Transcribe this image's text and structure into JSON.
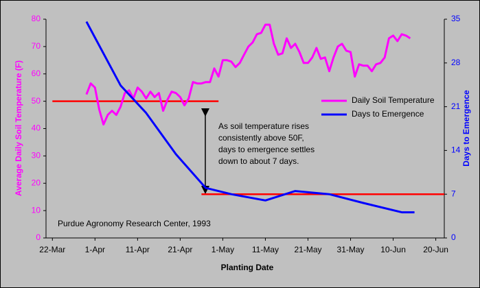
{
  "chart_data": {
    "type": "line",
    "xlabel": "Planting Date",
    "ylabel": "Average Daily Soil Temperature (F)",
    "y2label": "Days to Emergence",
    "xlim": [
      79.5,
      173
    ],
    "xticks": [
      {
        "value": 81,
        "label": "22-Mar"
      },
      {
        "value": 91,
        "label": "1-Apr"
      },
      {
        "value": 101,
        "label": "11-Apr"
      },
      {
        "value": 111,
        "label": "21-Apr"
      },
      {
        "value": 121,
        "label": "1-May"
      },
      {
        "value": 131,
        "label": "11-May"
      },
      {
        "value": 141,
        "label": "21-May"
      },
      {
        "value": 151,
        "label": "31-May"
      },
      {
        "value": 161,
        "label": "10-Jun"
      },
      {
        "value": 171,
        "label": "20-Jun"
      }
    ],
    "ylim": [
      0,
      80
    ],
    "yticks": [
      0,
      10,
      20,
      30,
      40,
      50,
      60,
      70,
      80
    ],
    "y2lim": [
      0,
      35
    ],
    "y2ticks": [
      0,
      7,
      14,
      21,
      28,
      35
    ],
    "series": [
      {
        "name": "Daily Soil Temperature",
        "color": "#ff00ff",
        "axis": "y",
        "x": [
          89,
          90,
          91,
          92,
          93,
          94,
          95,
          96,
          97,
          98,
          99,
          100,
          101,
          102,
          103,
          104,
          105,
          106,
          107,
          108,
          109,
          110,
          111,
          112,
          113,
          114,
          115,
          116,
          117,
          118,
          119,
          120,
          121,
          122,
          123,
          124,
          125,
          126,
          127,
          128,
          129,
          130,
          131,
          132,
          133,
          134,
          135,
          136,
          137,
          138,
          139,
          140,
          141,
          142,
          143,
          144,
          145,
          146,
          147,
          148,
          149,
          150,
          151,
          152,
          153,
          154,
          155,
          156,
          157,
          158,
          159,
          160,
          161,
          162,
          163,
          164,
          165
        ],
        "values": [
          52.5,
          56.5,
          55,
          47,
          41.5,
          45,
          46.5,
          45,
          48,
          53,
          54,
          51,
          55,
          53.5,
          51,
          53.5,
          51.5,
          53,
          46.5,
          50.5,
          53.5,
          53,
          51.5,
          48.5,
          51,
          57,
          56.5,
          56.5,
          57,
          57,
          62,
          59,
          65,
          65,
          64.5,
          62.5,
          64,
          67,
          70,
          71.5,
          74.5,
          75,
          78,
          78,
          71,
          67,
          67.5,
          73,
          69.5,
          71,
          68,
          64,
          64,
          66,
          69.5,
          65.5,
          66,
          61,
          66,
          70,
          71,
          68.5,
          68,
          59,
          63.5,
          63,
          63,
          61,
          63.5,
          64,
          66,
          73,
          74,
          72,
          74.5,
          74,
          73
        ]
      },
      {
        "name": "Days to Emergence",
        "color": "#0000ff",
        "axis": "y2",
        "x": [
          89,
          97,
          103,
          110,
          117,
          123,
          131,
          138,
          146,
          154,
          163,
          166
        ],
        "values": [
          34.6,
          24.4,
          20,
          13.4,
          8,
          7,
          6,
          7.5,
          7,
          5.6,
          4.1,
          4.1
        ]
      }
    ],
    "reference_lines": [
      {
        "axis": "y",
        "value": 50,
        "x": [
          81,
          120
        ],
        "color": "#ff0000"
      },
      {
        "axis": "y2",
        "value": 7,
        "x": [
          116,
          173
        ],
        "color": "#ff0000"
      }
    ],
    "annotation": [
      "As soil temperature rises",
      "consistently above 50F,",
      "days to emergence settles",
      "down to about 7 days."
    ],
    "source": "Purdue Agronomy Research Center, 1993",
    "legend": "right"
  }
}
